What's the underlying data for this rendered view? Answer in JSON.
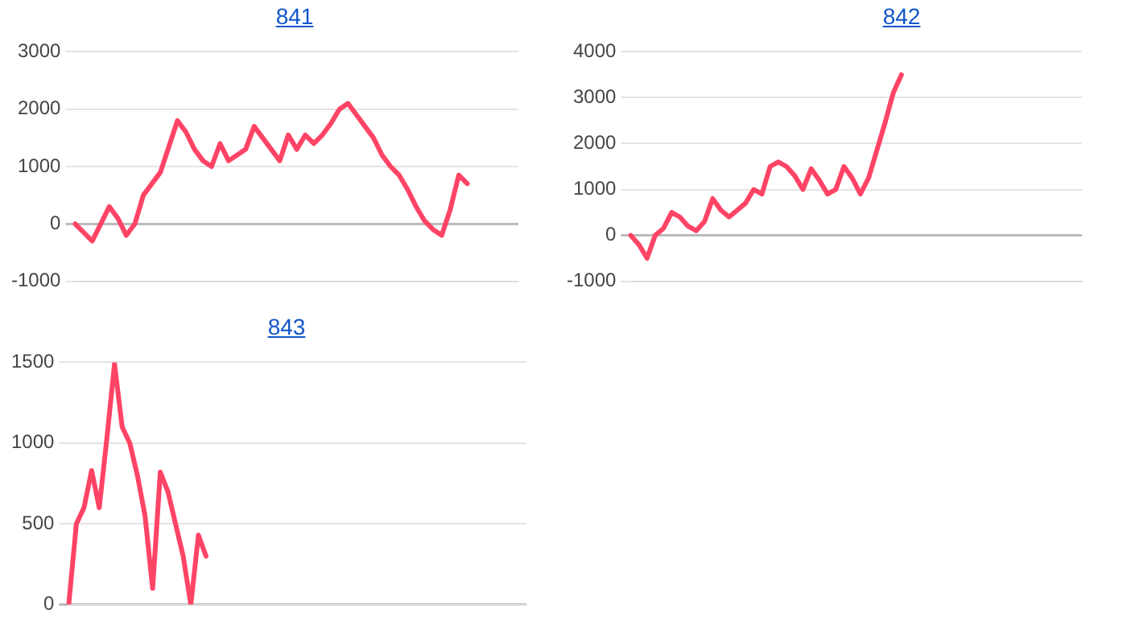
{
  "chart_data": [
    {
      "type": "line",
      "title": "841",
      "color": "#ff4466",
      "grid": "y",
      "tick_labels": "y",
      "ylim": [
        -1000,
        3000
      ],
      "yticks": [
        -1000,
        0,
        1000,
        2000,
        3000
      ],
      "categories": [
        null,
        null,
        null,
        null,
        null,
        null,
        null,
        null,
        null,
        null,
        null,
        null,
        null,
        null,
        null,
        null,
        null,
        null,
        null,
        null,
        null,
        null,
        null,
        null,
        null,
        null,
        null,
        null,
        null,
        null,
        null,
        null,
        null,
        null,
        null,
        null,
        null,
        null,
        null,
        null,
        null,
        null,
        null,
        null,
        null,
        null,
        null,
        null,
        null,
        null,
        null,
        null,
        null
      ],
      "values": [
        0,
        -150,
        -300,
        0,
        300,
        100,
        -200,
        0,
        500,
        700,
        900,
        1350,
        1800,
        1600,
        1300,
        1100,
        1000,
        1400,
        1100,
        1200,
        1300,
        1700,
        1500,
        1300,
        1100,
        1550,
        1300,
        1550,
        1400,
        1550,
        1750,
        2000,
        2100,
        1900,
        1700,
        1500,
        1200,
        1000,
        850,
        600,
        300,
        50,
        -100,
        -200,
        250,
        850,
        700,
        null,
        null,
        null,
        null,
        null,
        null
      ]
    },
    {
      "type": "line",
      "title": "842",
      "color": "#ff4466",
      "grid": "y",
      "tick_labels": "y",
      "ylim": [
        -1000,
        4000
      ],
      "yticks": [
        -1000,
        0,
        1000,
        2000,
        3000,
        4000
      ],
      "categories": [
        null,
        null,
        null,
        null,
        null,
        null,
        null,
        null,
        null,
        null,
        null,
        null,
        null,
        null,
        null,
        null,
        null,
        null,
        null,
        null,
        null,
        null,
        null,
        null,
        null,
        null,
        null,
        null,
        null,
        null,
        null,
        null,
        null,
        null,
        null,
        null,
        null,
        null,
        null,
        null,
        null,
        null,
        null,
        null,
        null,
        null,
        null,
        null,
        null,
        null,
        null,
        null,
        null,
        null,
        null,
        null
      ],
      "values": [
        0,
        -200,
        -500,
        0,
        150,
        500,
        400,
        200,
        100,
        300,
        800,
        550,
        400,
        550,
        700,
        1000,
        900,
        1500,
        1600,
        1500,
        1300,
        1000,
        1450,
        1200,
        900,
        1000,
        1500,
        1250,
        900,
        1250,
        1850,
        2450,
        3100,
        3500,
        null,
        null,
        null,
        null,
        null,
        null,
        null,
        null,
        null,
        null,
        null,
        null,
        null,
        null,
        null,
        null,
        null,
        null,
        null,
        null,
        null,
        null
      ]
    },
    {
      "type": "line",
      "title": "843",
      "color": "#ff4466",
      "grid": "y",
      "tick_labels": "y",
      "ylim": [
        0,
        1500
      ],
      "yticks": [
        0,
        500,
        1000,
        1500
      ],
      "categories": [
        null,
        null,
        null,
        null,
        null,
        null,
        null,
        null,
        null,
        null,
        null,
        null,
        null,
        null,
        null,
        null,
        null,
        null,
        null,
        null,
        null,
        null,
        null,
        null,
        null,
        null,
        null,
        null,
        null,
        null,
        null,
        null,
        null,
        null,
        null,
        null,
        null,
        null,
        null,
        null,
        null,
        null,
        null,
        null,
        null,
        null,
        null,
        null,
        null,
        null,
        null,
        null,
        null,
        null,
        null,
        null,
        null,
        null,
        null,
        null,
        null
      ],
      "values": [
        0,
        500,
        600,
        830,
        600,
        1030,
        1490,
        1100,
        1000,
        800,
        550,
        100,
        820,
        700,
        500,
        300,
        0,
        430,
        300,
        null,
        null,
        null,
        null,
        null,
        null,
        null,
        null,
        null,
        null,
        null,
        null,
        null,
        null,
        null,
        null,
        null,
        null,
        null,
        null,
        null,
        null,
        null,
        null,
        null,
        null,
        null,
        null,
        null,
        null,
        null,
        null,
        null,
        null,
        null,
        null,
        null,
        null,
        null,
        null,
        null,
        null
      ]
    }
  ]
}
